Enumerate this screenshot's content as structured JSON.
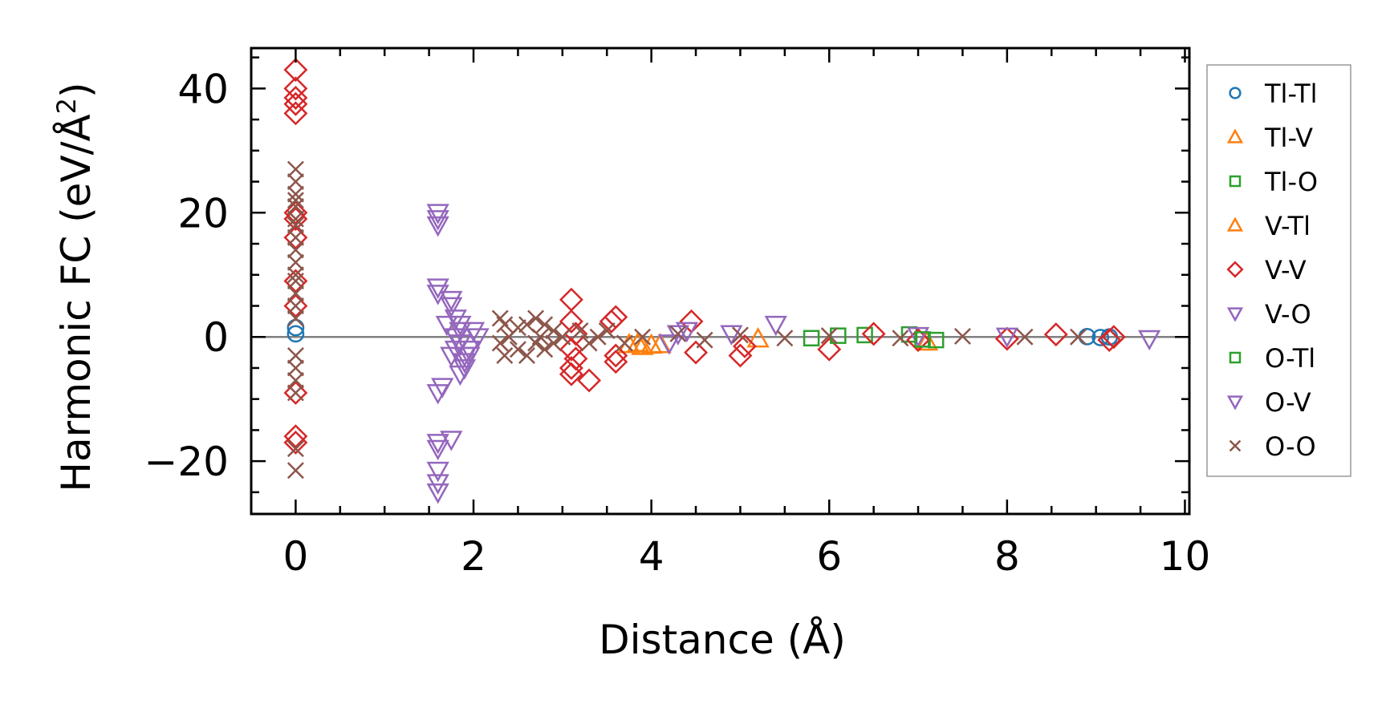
{
  "chart_data": {
    "type": "scatter",
    "title": "",
    "xlabel": "Distance (Å)",
    "ylabel_main": "Harmonic FC (eV/Å",
    "ylabel_sup": "2",
    "ylabel_close": ")",
    "xlim": [
      -0.5,
      10.05
    ],
    "ylim": [
      -28.5,
      46.5
    ],
    "x_ticks": [
      0,
      2,
      4,
      6,
      8,
      10
    ],
    "x_tick_labels": [
      "0",
      "2",
      "4",
      "6",
      "8",
      "10"
    ],
    "y_ticks": [
      -20,
      0,
      20,
      40
    ],
    "y_tick_labels": [
      "−20",
      "0",
      "20",
      "40"
    ],
    "x_minor_step": 0.5,
    "y_minor_step": 5,
    "zero_line": true,
    "legend_position": "right",
    "series": [
      {
        "name": "Tl-Tl",
        "marker": "circle",
        "color": "#1f77b4",
        "points": [
          [
            0,
            1.5
          ],
          [
            0,
            0.5
          ],
          [
            9.05,
            -0.1
          ],
          [
            9.15,
            0.0
          ],
          [
            8.9,
            0.05
          ]
        ]
      },
      {
        "name": "Tl-V",
        "marker": "triangle-up",
        "color": "#ff7f0e",
        "points": [
          [
            3.75,
            -1.2
          ],
          [
            3.9,
            -1.5
          ],
          [
            4.1,
            -1.2
          ],
          [
            7.1,
            -0.8
          ],
          [
            5.2,
            -0.3
          ]
        ]
      },
      {
        "name": "Tl-O",
        "marker": "square",
        "color": "#2ca02c",
        "points": [
          [
            5.8,
            -0.2
          ],
          [
            6.4,
            0.3
          ],
          [
            7.2,
            -0.5
          ],
          [
            6.9,
            0.4
          ]
        ]
      },
      {
        "name": "V-Tl",
        "marker": "triangle-up",
        "color": "#ff7f0e",
        "points": [
          [
            3.85,
            -1.0
          ],
          [
            4.0,
            -1.3
          ]
        ]
      },
      {
        "name": "V-V",
        "marker": "diamond",
        "color": "#d62728",
        "points": [
          [
            0,
            43
          ],
          [
            0,
            40
          ],
          [
            0,
            38.5
          ],
          [
            0,
            37.5
          ],
          [
            0,
            36
          ],
          [
            0,
            20
          ],
          [
            0,
            19
          ],
          [
            0,
            16
          ],
          [
            0,
            9
          ],
          [
            0,
            5
          ],
          [
            0,
            -9
          ],
          [
            0,
            -16
          ],
          [
            0,
            -17
          ],
          [
            3.1,
            6
          ],
          [
            3.1,
            2.5
          ],
          [
            3.15,
            0.5
          ],
          [
            3.1,
            -2
          ],
          [
            3.15,
            -3.5
          ],
          [
            3.1,
            -5
          ],
          [
            3.1,
            -6
          ],
          [
            3.3,
            -7
          ],
          [
            3.55,
            2.5
          ],
          [
            3.6,
            3.2
          ],
          [
            3.6,
            -3
          ],
          [
            3.6,
            -4
          ],
          [
            4.45,
            2.5
          ],
          [
            4.5,
            -2.5
          ],
          [
            5.0,
            -3
          ],
          [
            5.05,
            -1.5
          ],
          [
            6.0,
            -2
          ],
          [
            6.5,
            0.5
          ],
          [
            7.0,
            -0.5
          ],
          [
            8.0,
            -0.3
          ],
          [
            8.55,
            0.4
          ],
          [
            9.15,
            -0.5
          ],
          [
            9.2,
            0
          ]
        ]
      },
      {
        "name": "V-O",
        "marker": "triangle-down",
        "color": "#9467bd",
        "points": [
          [
            1.6,
            20
          ],
          [
            1.6,
            19
          ],
          [
            1.6,
            18
          ],
          [
            1.6,
            8
          ],
          [
            1.6,
            7
          ],
          [
            1.65,
            -8
          ],
          [
            1.6,
            -9
          ],
          [
            1.6,
            -17
          ],
          [
            1.6,
            -18
          ],
          [
            1.75,
            -16.5
          ],
          [
            1.6,
            -21.5
          ],
          [
            1.6,
            -23.5
          ],
          [
            1.6,
            -25
          ],
          [
            1.75,
            6
          ],
          [
            1.75,
            5
          ],
          [
            1.8,
            3
          ],
          [
            1.85,
            2
          ],
          [
            1.85,
            1
          ],
          [
            1.8,
            0
          ],
          [
            1.85,
            -1
          ],
          [
            1.8,
            -2
          ],
          [
            1.75,
            -3
          ],
          [
            1.9,
            -4
          ],
          [
            1.9,
            -5
          ],
          [
            1.85,
            -6
          ],
          [
            1.95,
            -3
          ],
          [
            2.0,
            1
          ],
          [
            2.05,
            0
          ],
          [
            1.95,
            -2
          ],
          [
            5.4,
            2
          ],
          [
            4.4,
            1
          ],
          [
            4.2,
            -1
          ],
          [
            9.6,
            -0.3
          ],
          [
            7.0,
            0.2
          ],
          [
            8.0,
            0.1
          ],
          [
            4.9,
            0.5
          ]
        ]
      },
      {
        "name": "O-Tl",
        "marker": "square",
        "color": "#2ca02c",
        "points": [
          [
            6.1,
            0.2
          ],
          [
            7.05,
            -0.4
          ]
        ]
      },
      {
        "name": "O-V",
        "marker": "triangle-down",
        "color": "#9467bd",
        "points": [
          [
            1.7,
            2
          ],
          [
            1.9,
            -3
          ],
          [
            4.3,
            0.5
          ]
        ]
      },
      {
        "name": "O-O",
        "marker": "x",
        "color": "#8c564b",
        "points": [
          [
            0,
            27
          ],
          [
            0,
            25
          ],
          [
            0,
            23
          ],
          [
            0,
            22
          ],
          [
            0,
            21
          ],
          [
            0,
            19
          ],
          [
            0,
            18
          ],
          [
            0,
            16
          ],
          [
            0,
            14
          ],
          [
            0,
            12
          ],
          [
            0,
            10
          ],
          [
            0,
            9
          ],
          [
            0,
            7
          ],
          [
            0,
            5
          ],
          [
            0,
            3
          ],
          [
            0,
            -3
          ],
          [
            0,
            -5
          ],
          [
            0,
            -7
          ],
          [
            0,
            -9
          ],
          [
            0,
            -18
          ],
          [
            0,
            -21.5
          ],
          [
            2.3,
            3
          ],
          [
            2.35,
            2
          ],
          [
            2.3,
            -1
          ],
          [
            2.35,
            -3
          ],
          [
            2.4,
            0
          ],
          [
            2.5,
            1.5
          ],
          [
            2.5,
            -2
          ],
          [
            2.6,
            2
          ],
          [
            2.6,
            -3
          ],
          [
            2.7,
            3
          ],
          [
            2.7,
            -1
          ],
          [
            2.75,
            0
          ],
          [
            2.8,
            2
          ],
          [
            2.8,
            -2
          ],
          [
            2.9,
            1
          ],
          [
            2.9,
            -1
          ],
          [
            3.0,
            0
          ],
          [
            3.2,
            1
          ],
          [
            3.3,
            -1
          ],
          [
            3.4,
            0
          ],
          [
            3.5,
            1
          ],
          [
            3.7,
            -1
          ],
          [
            3.9,
            0
          ],
          [
            4.3,
            0.5
          ],
          [
            4.6,
            -0.5
          ],
          [
            5.0,
            0.3
          ],
          [
            5.5,
            -0.2
          ],
          [
            6.0,
            0.2
          ],
          [
            6.8,
            -0.2
          ],
          [
            7.5,
            0.1
          ],
          [
            8.2,
            0
          ],
          [
            8.8,
            0
          ]
        ]
      }
    ]
  }
}
